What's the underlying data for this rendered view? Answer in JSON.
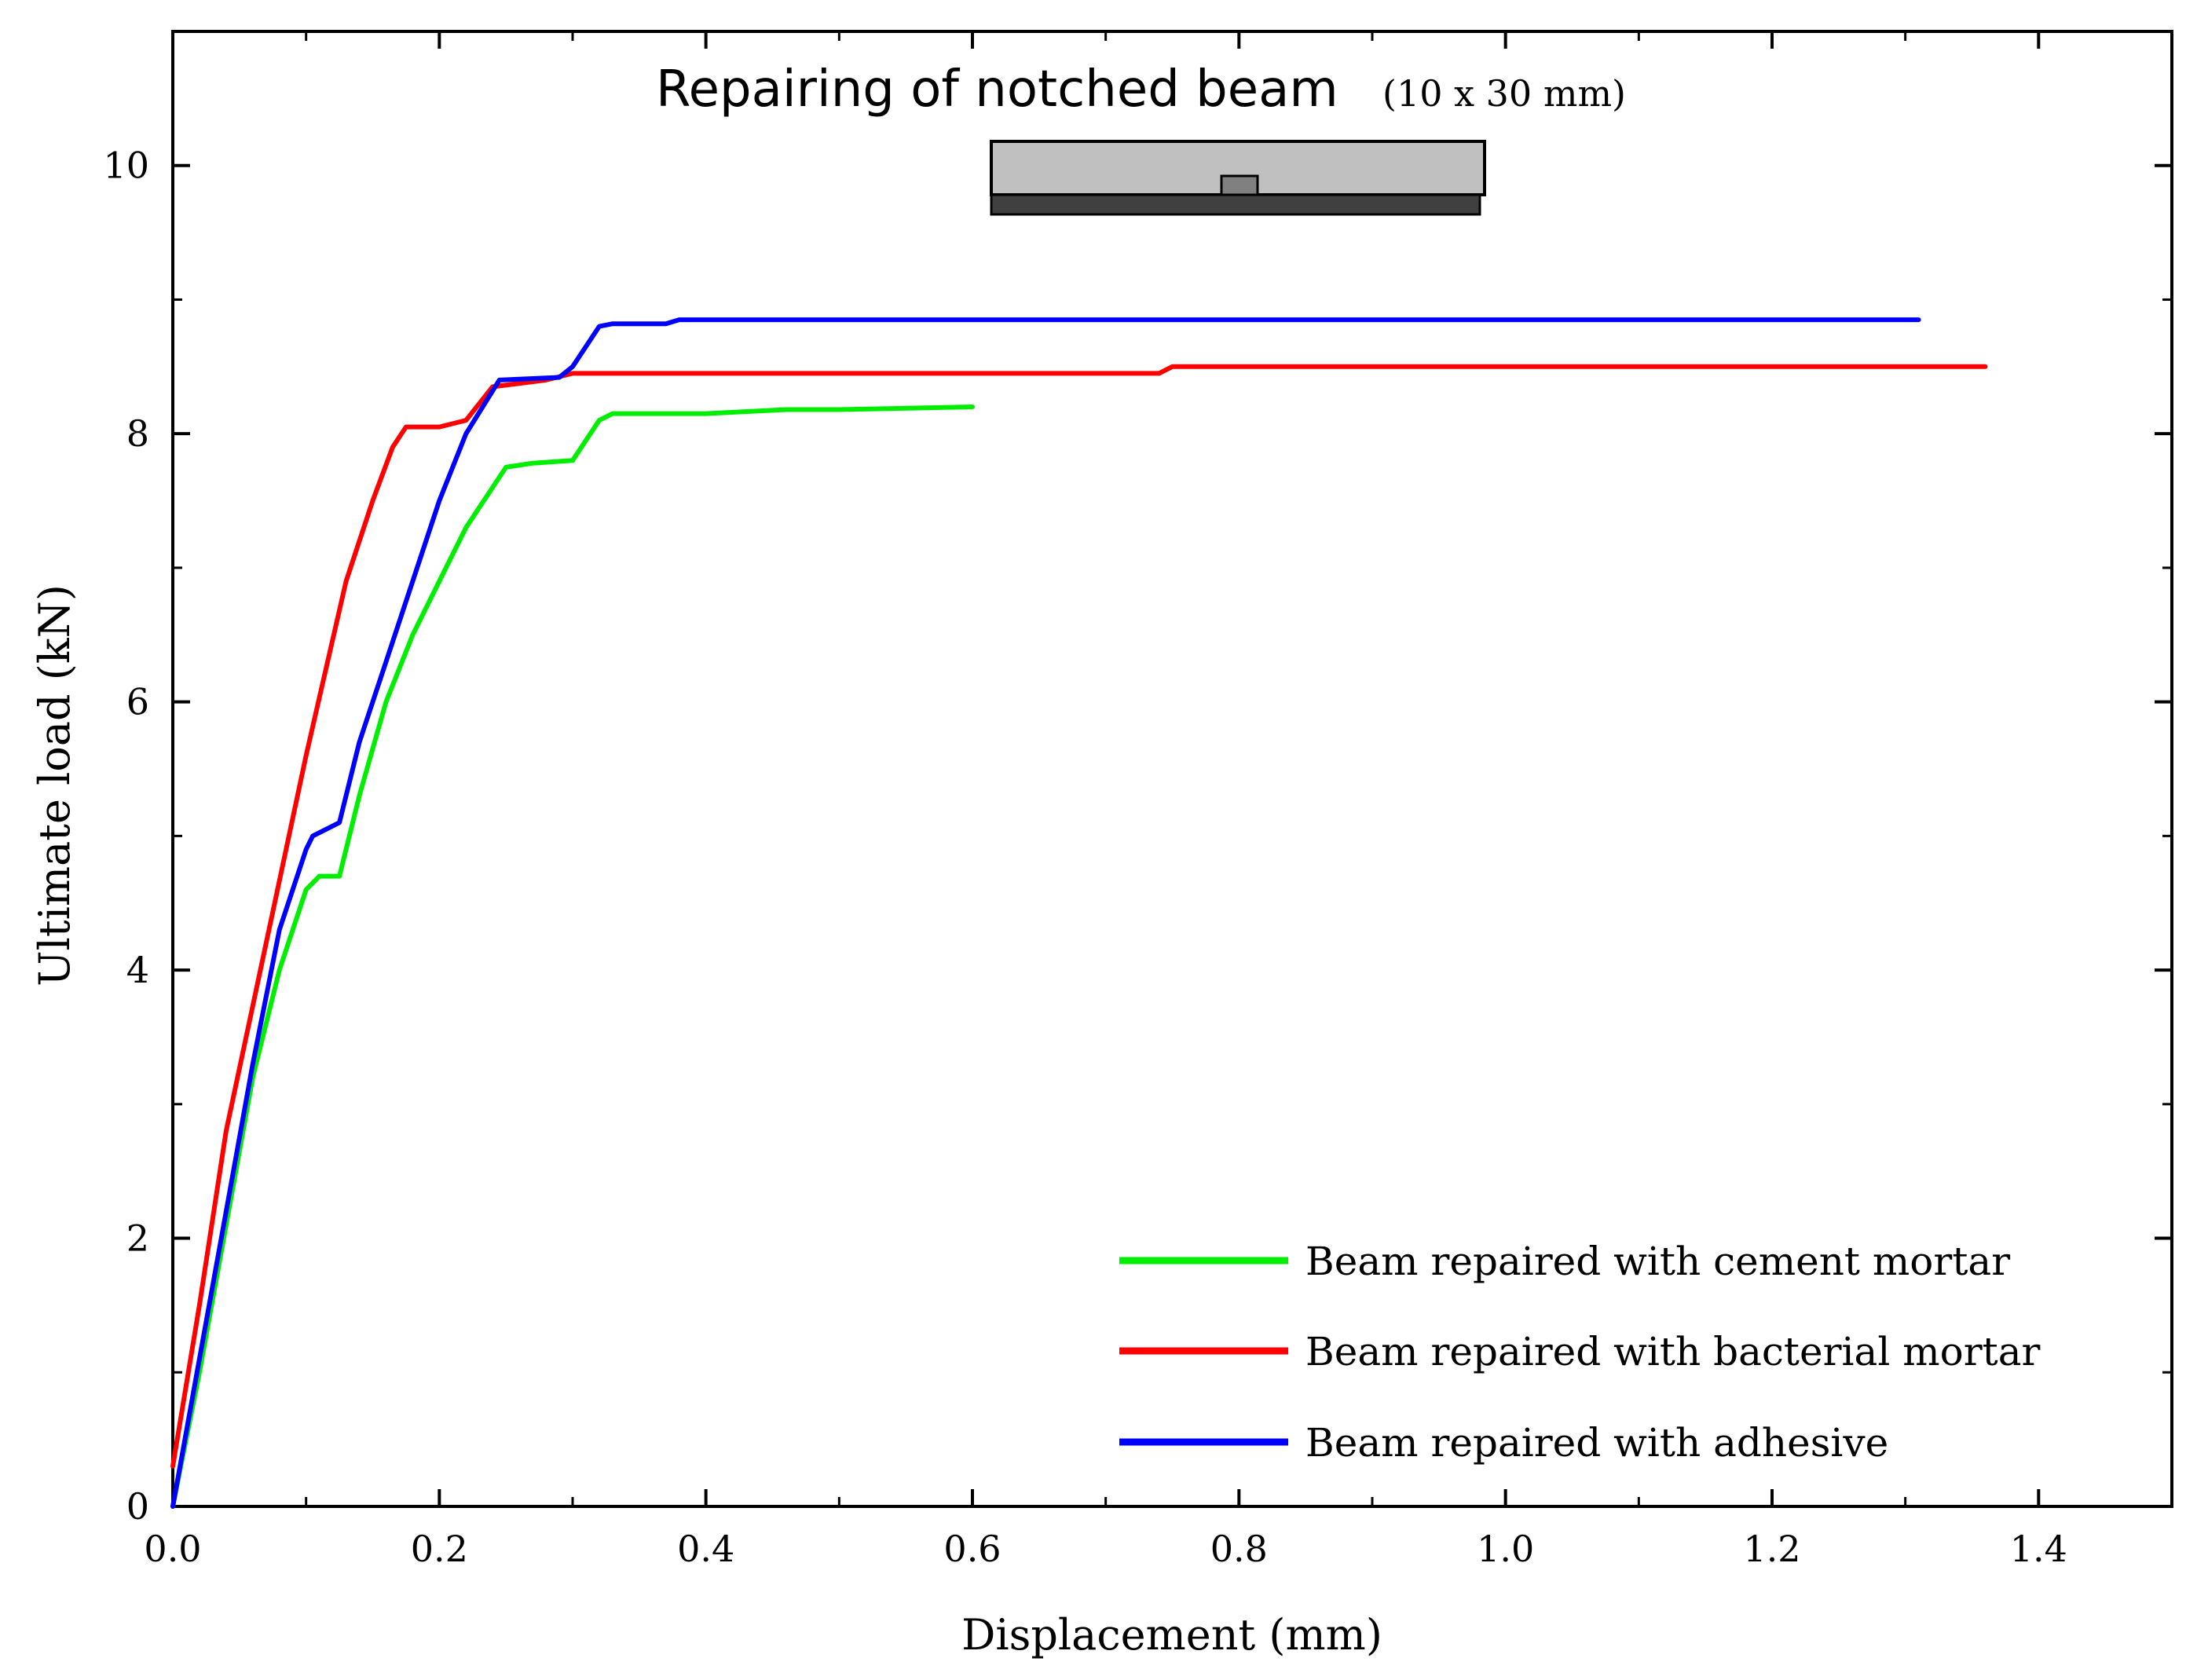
{
  "chart_data": {
    "type": "line",
    "title": "Repairing of notched beam",
    "subtitle": "(10 x 30 mm)",
    "xlabel": "Displacement (mm)",
    "ylabel": "Ultimate load (kN)",
    "xlim": [
      0,
      1.5
    ],
    "ylim": [
      0,
      11
    ],
    "xticks": [
      0.0,
      0.2,
      0.4,
      0.6,
      0.8,
      1.0,
      1.2,
      1.4
    ],
    "xtick_labels": [
      "0.0",
      "0.2",
      "0.4",
      "0.6",
      "0.8",
      "1.0",
      "1.2",
      "1.4"
    ],
    "yticks": [
      0,
      2,
      4,
      6,
      8,
      10
    ],
    "ytick_labels": [
      "0",
      "2",
      "4",
      "6",
      "8",
      "10"
    ],
    "grid": false,
    "legend_position": "bottom-right",
    "series": [
      {
        "name": "Beam repaired with cement mortar",
        "color": "#00ee00",
        "x": [
          0.0,
          0.02,
          0.04,
          0.06,
          0.08,
          0.1,
          0.11,
          0.125,
          0.14,
          0.16,
          0.18,
          0.2,
          0.22,
          0.24,
          0.25,
          0.27,
          0.3,
          0.32,
          0.33,
          0.35,
          0.4,
          0.46,
          0.5,
          0.6
        ],
        "y": [
          0.0,
          1.0,
          2.1,
          3.2,
          4.0,
          4.6,
          4.7,
          4.7,
          5.3,
          6.0,
          6.5,
          6.9,
          7.3,
          7.6,
          7.75,
          7.78,
          7.8,
          8.1,
          8.15,
          8.15,
          8.15,
          8.18,
          8.18,
          8.2
        ]
      },
      {
        "name": "Beam repaired with bacterial mortar",
        "color": "#ff0000",
        "x": [
          0.0,
          0.02,
          0.04,
          0.07,
          0.1,
          0.13,
          0.15,
          0.165,
          0.175,
          0.2,
          0.22,
          0.24,
          0.28,
          0.3,
          0.5,
          0.74,
          0.75,
          1.0,
          1.36
        ],
        "y": [
          0.3,
          1.5,
          2.8,
          4.2,
          5.6,
          6.9,
          7.5,
          7.9,
          8.05,
          8.05,
          8.1,
          8.35,
          8.4,
          8.45,
          8.45,
          8.45,
          8.5,
          8.5,
          8.5
        ]
      },
      {
        "name": "Beam repaired with adhesive",
        "color": "#0000ff",
        "x": [
          0.0,
          0.02,
          0.04,
          0.06,
          0.08,
          0.1,
          0.105,
          0.125,
          0.14,
          0.16,
          0.18,
          0.2,
          0.22,
          0.245,
          0.29,
          0.3,
          0.32,
          0.33,
          0.37,
          0.38,
          0.6,
          1.0,
          1.31
        ],
        "y": [
          0.0,
          1.1,
          2.2,
          3.3,
          4.3,
          4.9,
          5.0,
          5.1,
          5.7,
          6.3,
          6.9,
          7.5,
          8.0,
          8.4,
          8.42,
          8.5,
          8.8,
          8.82,
          8.82,
          8.85,
          8.85,
          8.85,
          8.85
        ]
      }
    ]
  },
  "inset": {
    "description_icon": "notched-beam-icon",
    "colors": {
      "beam": "#c0c0c0",
      "repair_layer": "#404040",
      "notch": "#808080"
    }
  }
}
